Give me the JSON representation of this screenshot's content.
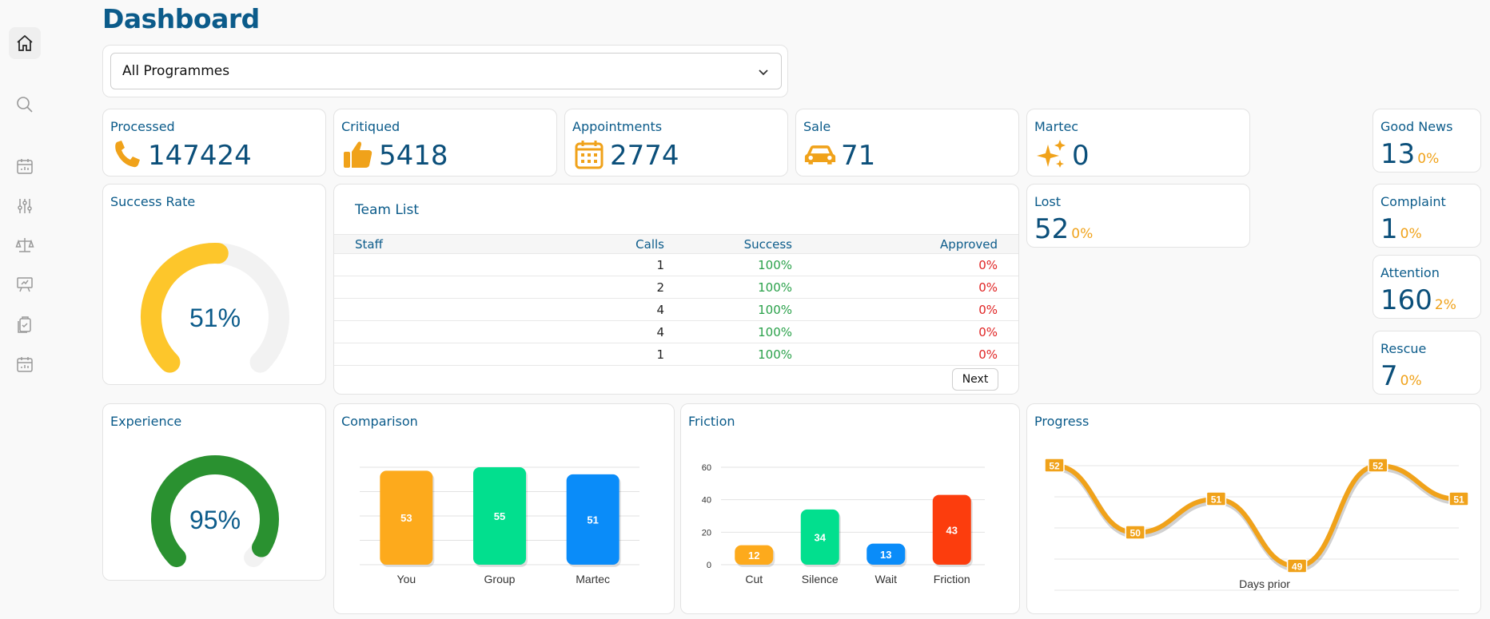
{
  "header": {
    "title": "Dashboard"
  },
  "sidebar": {
    "items": [
      {
        "icon": "home-icon"
      },
      {
        "icon": "search-icon"
      },
      {
        "icon": "calendar-chart-icon"
      },
      {
        "icon": "sliders-icon"
      },
      {
        "icon": "scale-icon"
      },
      {
        "icon": "presentation-board-icon"
      },
      {
        "icon": "clipboard-check-icon"
      },
      {
        "icon": "calendar-chart-icon"
      }
    ]
  },
  "filter": {
    "selected": "All Programmes"
  },
  "stats": [
    {
      "label": "Processed",
      "value": "147424",
      "icon": "phone-icon"
    },
    {
      "label": "Critiqued",
      "value": "5418",
      "icon": "thumbs-up-icon"
    },
    {
      "label": "Appointments",
      "value": "2774",
      "icon": "calendar-icon"
    },
    {
      "label": "Sale",
      "value": "71",
      "icon": "car-icon"
    },
    {
      "label": "Martec",
      "value": "0",
      "icon": "sparkles-icon"
    }
  ],
  "lost": {
    "label": "Lost",
    "value": "52",
    "pct": "0%"
  },
  "side_stats": [
    {
      "label": "Good News",
      "value": "13",
      "pct": "0%"
    },
    {
      "label": "Complaint",
      "value": "1",
      "pct": "0%"
    },
    {
      "label": "Attention",
      "value": "160",
      "pct": "2%"
    },
    {
      "label": "Rescue",
      "value": "7",
      "pct": "0%"
    }
  ],
  "success_rate": {
    "title": "Success Rate",
    "value": "51%",
    "fraction": 0.51,
    "color": "#fdc62b"
  },
  "experience": {
    "title": "Experience",
    "value": "95%",
    "fraction": 0.95,
    "color": "#2a9130"
  },
  "team_list": {
    "title": "Team List",
    "columns": [
      "Staff",
      "Calls",
      "Success",
      "Approved"
    ],
    "rows": [
      {
        "staff": "",
        "calls": "1",
        "success": "100%",
        "approved": "0%"
      },
      {
        "staff": "",
        "calls": "2",
        "success": "100%",
        "approved": "0%"
      },
      {
        "staff": "",
        "calls": "4",
        "success": "100%",
        "approved": "0%"
      },
      {
        "staff": "",
        "calls": "4",
        "success": "100%",
        "approved": "0%"
      },
      {
        "staff": "",
        "calls": "1",
        "success": "100%",
        "approved": "0%"
      }
    ],
    "next_label": "Next"
  },
  "chart_data": [
    {
      "type": "bar",
      "title": "Comparison",
      "categories": [
        "You",
        "Group",
        "Martec"
      ],
      "values": [
        53,
        55,
        51
      ],
      "colors": [
        "#fdaa1c",
        "#02df8e",
        "#0a8cf9"
      ],
      "ylim": [
        0,
        55
      ],
      "grid": true
    },
    {
      "type": "bar",
      "title": "Friction",
      "categories": [
        "Cut",
        "Silence",
        "Wait",
        "Friction"
      ],
      "values": [
        12,
        34,
        13,
        43
      ],
      "colors": [
        "#fdaa1c",
        "#02df8e",
        "#0a8cf9",
        "#fc3d0d"
      ],
      "ylim": [
        0,
        60
      ],
      "yticks": [
        "0",
        "20",
        "40",
        "60"
      ],
      "grid": true
    },
    {
      "type": "line",
      "title": "Progress",
      "xlabel": "Days prior",
      "values": [
        52,
        50,
        51,
        49,
        52,
        51
      ],
      "color": "#f0a21a",
      "ylim": [
        49,
        52
      ],
      "grid": true
    }
  ]
}
